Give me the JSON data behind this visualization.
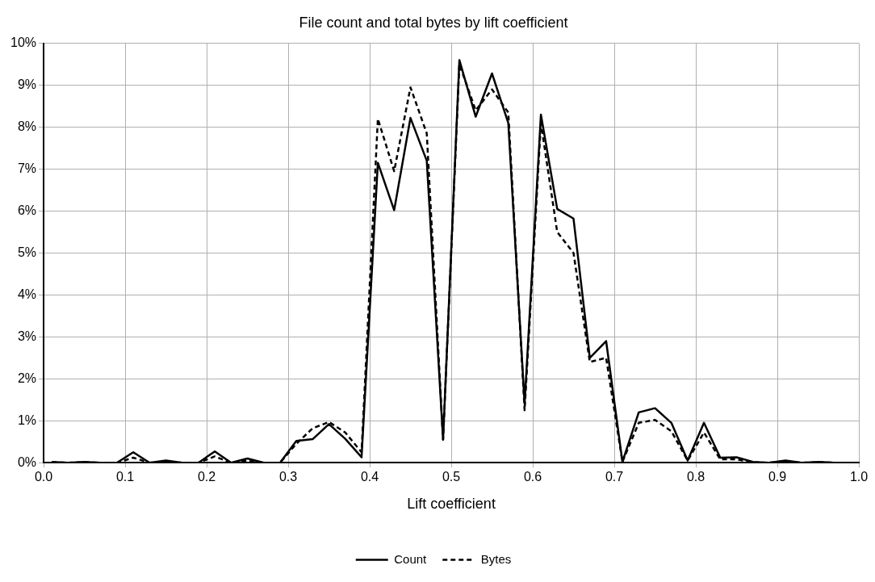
{
  "chart_data": {
    "type": "line",
    "title": "File count and total bytes by lift coefficient",
    "xlabel": "Lift coefficient",
    "x": [
      0.01,
      0.03,
      0.05,
      0.07,
      0.09,
      0.11,
      0.13,
      0.15,
      0.17,
      0.19,
      0.21,
      0.23,
      0.25,
      0.27,
      0.29,
      0.31,
      0.33,
      0.35,
      0.37,
      0.39,
      0.41,
      0.43,
      0.45,
      0.47,
      0.49,
      0.51,
      0.53,
      0.55,
      0.57,
      0.59,
      0.61,
      0.63,
      0.65,
      0.67,
      0.69,
      0.71,
      0.73,
      0.75,
      0.77,
      0.79,
      0.81,
      0.83,
      0.85,
      0.87,
      0.89,
      0.91,
      0.93,
      0.95,
      0.97,
      0.99
    ],
    "series": [
      {
        "name": "Count",
        "color": "#000000",
        "line_style": "solid",
        "values": [
          0.02,
          0,
          0.02,
          0,
          0,
          0.25,
          0,
          0.05,
          0,
          0,
          0.27,
          0,
          0.1,
          0,
          0,
          0.52,
          0.56,
          0.92,
          0.57,
          0.13,
          7.15,
          6.02,
          8.22,
          7.2,
          0.55,
          9.6,
          8.25,
          9.28,
          8.1,
          1.4,
          8.3,
          6.05,
          5.82,
          2.5,
          2.9,
          0.02,
          1.2,
          1.3,
          0.95,
          0.05,
          0.95,
          0.12,
          0.13,
          0.02,
          0,
          0.05,
          0,
          0.02,
          0,
          0
        ]
      },
      {
        "name": "Bytes",
        "color": "#000000",
        "line_style": "dashed",
        "values": [
          0.01,
          0,
          0.01,
          0,
          0,
          0.12,
          0,
          0.02,
          0,
          0,
          0.15,
          0,
          0.05,
          0,
          0,
          0.45,
          0.82,
          0.97,
          0.72,
          0.25,
          8.2,
          6.95,
          8.95,
          7.85,
          0.55,
          9.5,
          8.4,
          8.9,
          8.35,
          1.25,
          8.1,
          5.5,
          5.0,
          2.4,
          2.5,
          0.02,
          0.95,
          1.02,
          0.75,
          0.05,
          0.72,
          0.08,
          0.08,
          0.01,
          0,
          0.03,
          0,
          0.01,
          0,
          0
        ]
      }
    ],
    "xlim": [
      0,
      1
    ],
    "xticks": [
      {
        "value": 0,
        "label": "0.0"
      },
      0.1,
      0.2,
      0.3,
      0.4,
      0.5,
      0.6,
      0.7,
      0.8,
      0.9,
      {
        "value": 1,
        "label": "1.0"
      }
    ],
    "ylim": [
      0,
      10
    ],
    "yticks": [
      {
        "value": 0,
        "label": "0%"
      },
      {
        "value": 1,
        "label": "1%"
      },
      {
        "value": 2,
        "label": "2%"
      },
      {
        "value": 3,
        "label": "3%"
      },
      {
        "value": 4,
        "label": "4%"
      },
      {
        "value": 5,
        "label": "5%"
      },
      {
        "value": 6,
        "label": "6%"
      },
      {
        "value": 7,
        "label": "7%"
      },
      {
        "value": 8,
        "label": "8%"
      },
      {
        "value": 9,
        "label": "9%"
      },
      {
        "value": 10,
        "label": "10%"
      }
    ],
    "grid": true,
    "legend": "bottom",
    "marker": "none"
  }
}
